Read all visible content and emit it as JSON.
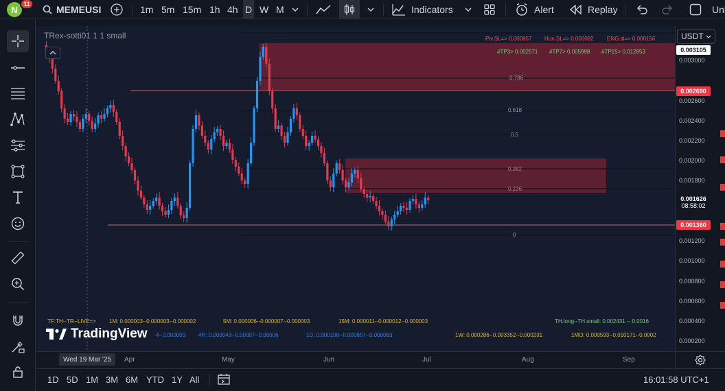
{
  "header": {
    "avatar_letter": "N",
    "notifications": "11",
    "symbol": "MEMEUSI",
    "timeframes": [
      "1m",
      "5m",
      "15m",
      "1h",
      "4h",
      "D",
      "W",
      "M"
    ],
    "active_timeframe": "D",
    "indicators_label": "Indicators",
    "alert_label": "Alert",
    "replay_label": "Replay",
    "trailing_text": "Unl"
  },
  "legend": {
    "title": "TRex-sotti01 1 1 small"
  },
  "indicator_text": {
    "piv": "Piv.SL=> 0.000857",
    "hun": "Hun.SL=> 0.000082",
    "eng": "ENG.sl=> 0.000156",
    "tp3": "#TP3> 0.002571",
    "tp7": "#TP7> 0.005998",
    "tp15": "#TP15> 0.012853",
    "fib_0786": "0.786",
    "fib_0618": "0.618",
    "fib_05": "0.5",
    "fib_0382": "0.382",
    "fib_0236": "0.236",
    "fib_0": "0",
    "tf_row1_head": "TF:TH--TR--LIVE=>",
    "tf_1m": "1M: 0.000003--0.000003--0.000002",
    "tf_5m": "5M: 0.000006--0.000007--0.000003",
    "tf_15m": "15M: 0.000011--0.000012--0.000003",
    "th_long": "TH.long--TH.small: 0.002431 -- 0.0016",
    "tf_4h_tail": "4--0.000003",
    "tf_4h": "4H: 0.000043--0.00007--0.00006",
    "tf_1d": "1D: 0.000108--0.000857--0.000063",
    "tf_1w": "1W: 0.000286--0.003352--0.000231",
    "tf_1mo": "1MO: 0.000593--0.010171--0.0002"
  },
  "watermark": "TradingView",
  "price_scale": {
    "currency": "USDT",
    "labels": [
      "0.003000",
      "0.002600",
      "0.002400",
      "0.002200",
      "0.002000",
      "0.001800",
      "0.001200",
      "0.001000",
      "0.000800",
      "0.000600",
      "0.000400",
      "0.000200"
    ],
    "tag_top": "0.003105",
    "tag_upper": "0.002690",
    "tag_current": "0.001626",
    "tag_countdown": "08:58:02",
    "tag_lower": "0.001360"
  },
  "time_axis": {
    "cursor_date": "Wed 19 Mar '25",
    "labels": [
      "Apr",
      "May",
      "Jun",
      "Jul",
      "Aug",
      "Sep"
    ]
  },
  "bottom": {
    "ranges": [
      "1D",
      "5D",
      "1M",
      "3M",
      "6M",
      "YTD",
      "1Y",
      "All"
    ],
    "clock": "16:01:58 UTC+1"
  },
  "colors": {
    "up": "#2196f3",
    "down": "#e53950",
    "line_red": "#f05454",
    "box": "#7a2233",
    "bg": "#141c2e"
  },
  "chart_data": {
    "type": "candlestick",
    "price_range": [
      0.0001,
      0.0033
    ],
    "time_range": [
      "Mar '25",
      "Sep '25"
    ],
    "horizontal_lines": [
      0.00269,
      0.00136
    ],
    "current_price": 0.001626
  }
}
